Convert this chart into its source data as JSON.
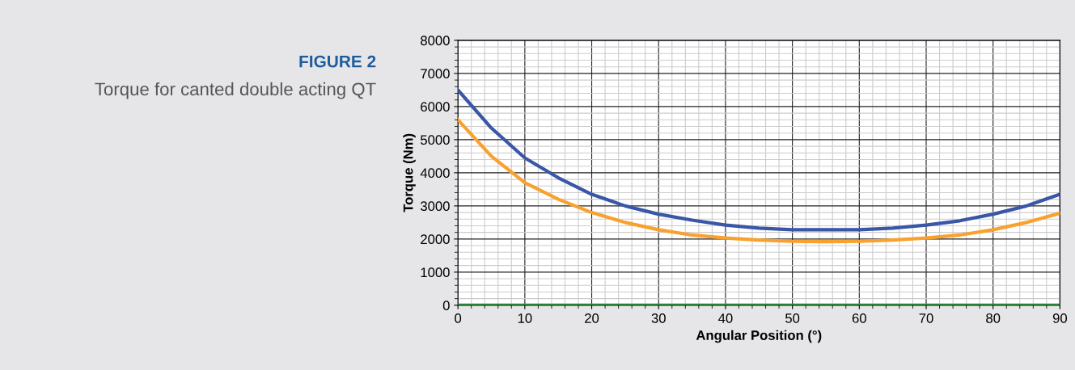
{
  "chart_data": {
    "type": "line",
    "title": "FIGURE 2",
    "subtitle": "Torque for canted double acting QT",
    "xlabel": "Angular Position (°)",
    "ylabel": "Torque (Nm)",
    "x": [
      0,
      5,
      10,
      15,
      20,
      25,
      30,
      35,
      40,
      45,
      50,
      55,
      60,
      65,
      70,
      75,
      80,
      85,
      90
    ],
    "series": [
      {
        "color": "#3a56a6",
        "values": [
          6500,
          5350,
          4450,
          3850,
          3350,
          3000,
          2750,
          2570,
          2420,
          2330,
          2280,
          2280,
          2280,
          2330,
          2420,
          2550,
          2750,
          3000,
          3350
        ]
      },
      {
        "color": "#f9a12e",
        "values": [
          5600,
          4500,
          3700,
          3200,
          2800,
          2500,
          2280,
          2120,
          2030,
          1970,
          1930,
          1920,
          1930,
          1970,
          2030,
          2120,
          2280,
          2500,
          2780
        ]
      },
      {
        "color": "#2e8b3a",
        "values": [
          0,
          0,
          0,
          0,
          0,
          0,
          0,
          0,
          0,
          0,
          0,
          0,
          0,
          0,
          0,
          0,
          0,
          0,
          0
        ]
      }
    ],
    "xlim": [
      0,
      90
    ],
    "xticks": [
      0,
      10,
      20,
      30,
      40,
      50,
      60,
      70,
      80,
      90
    ],
    "ylim": [
      0,
      8000
    ],
    "yticks": [
      0,
      1000,
      2000,
      3000,
      4000,
      5000,
      6000,
      7000,
      8000
    ],
    "grid": true,
    "marker": "none",
    "line_style": "solid"
  }
}
